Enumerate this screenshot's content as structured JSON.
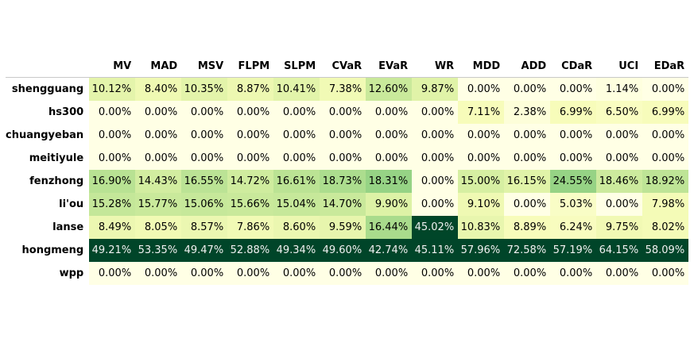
{
  "chart_data": {
    "type": "heatmap",
    "columns": [
      "MV",
      "MAD",
      "MSV",
      "FLPM",
      "SLPM",
      "CVaR",
      "EVaR",
      "WR",
      "MDD",
      "ADD",
      "CDaR",
      "UCI",
      "EDaR"
    ],
    "rows": [
      "shengguang",
      "hs300",
      "chuangyeban",
      "meitiyule",
      "fenzhong",
      "li'ou",
      "lanse",
      "hongmeng",
      "wpp"
    ],
    "values": [
      [
        10.12,
        8.4,
        10.35,
        8.87,
        10.41,
        7.38,
        12.6,
        9.87,
        0.0,
        0.0,
        0.0,
        1.14,
        0.0
      ],
      [
        0.0,
        0.0,
        0.0,
        0.0,
        0.0,
        0.0,
        0.0,
        0.0,
        7.11,
        2.38,
        6.99,
        6.5,
        6.99
      ],
      [
        0.0,
        0.0,
        0.0,
        0.0,
        0.0,
        0.0,
        0.0,
        0.0,
        0.0,
        0.0,
        0.0,
        0.0,
        0.0
      ],
      [
        0.0,
        0.0,
        0.0,
        0.0,
        0.0,
        0.0,
        0.0,
        0.0,
        0.0,
        0.0,
        0.0,
        0.0,
        0.0
      ],
      [
        16.9,
        14.43,
        16.55,
        14.72,
        16.61,
        18.73,
        18.31,
        0.0,
        15.0,
        16.15,
        24.55,
        18.46,
        18.92
      ],
      [
        15.28,
        15.77,
        15.06,
        15.66,
        15.04,
        14.7,
        9.9,
        0.0,
        9.1,
        0.0,
        5.03,
        0.0,
        7.98
      ],
      [
        8.49,
        8.05,
        8.57,
        7.86,
        8.6,
        9.59,
        16.44,
        45.02,
        10.83,
        8.89,
        6.24,
        9.75,
        8.02
      ],
      [
        49.21,
        53.35,
        49.47,
        52.88,
        49.34,
        49.6,
        42.74,
        45.11,
        57.96,
        72.58,
        57.19,
        64.15,
        58.09
      ],
      [
        0.0,
        0.0,
        0.0,
        0.0,
        0.0,
        0.0,
        0.0,
        0.0,
        0.0,
        0.0,
        0.0,
        0.0,
        0.0
      ]
    ],
    "value_suffix": "%",
    "colormap": "YlGn",
    "title": "",
    "xlabel": "",
    "ylabel": ""
  }
}
